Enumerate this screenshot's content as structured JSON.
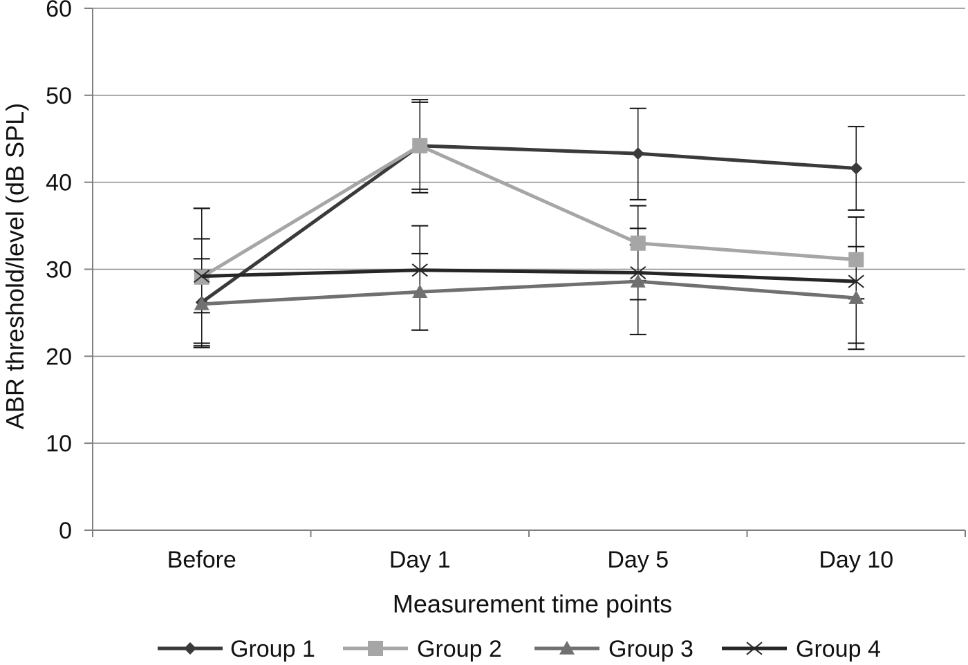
{
  "chart_data": {
    "type": "line",
    "title": "",
    "xlabel": "Measurement time points",
    "ylabel": "ABR threshold/level (dB SPL)",
    "categories": [
      "Before",
      "Day 1",
      "Day 5",
      "Day 10"
    ],
    "ylim": [
      0,
      60
    ],
    "yticks": [
      0,
      10,
      20,
      30,
      40,
      50,
      60
    ],
    "grid": true,
    "legend_position": "bottom",
    "series": [
      {
        "name": "Group 1",
        "marker": "diamond",
        "color": "#3a3a3a",
        "values": [
          26.2,
          44.2,
          43.3,
          41.6
        ],
        "error": [
          [
            21.5,
            37.0
          ],
          [
            39.2,
            49.2
          ],
          [
            38.0,
            48.5
          ],
          [
            36.8,
            46.4
          ]
        ]
      },
      {
        "name": "Group 2",
        "marker": "square",
        "color": "#a6a6a6",
        "values": [
          29.1,
          44.2,
          33.0,
          31.1
        ],
        "error": [
          [
            25.0,
            33.5
          ],
          [
            38.8,
            49.5
          ],
          [
            28.7,
            37.3
          ],
          [
            26.6,
            36.0
          ]
        ]
      },
      {
        "name": "Group 3",
        "marker": "triangle",
        "color": "#707070",
        "values": [
          26.0,
          27.4,
          28.6,
          26.7
        ],
        "error": [
          [
            21.0,
            31.2
          ],
          [
            23.0,
            31.8
          ],
          [
            22.5,
            34.7
          ],
          [
            20.8,
            32.6
          ]
        ]
      },
      {
        "name": "Group 4",
        "marker": "x",
        "color": "#262626",
        "values": [
          29.2,
          29.9,
          29.6,
          28.6
        ],
        "error": [
          [
            21.2,
            37.0
          ],
          [
            23.0,
            35.0
          ],
          [
            26.5,
            32.8
          ],
          [
            21.5,
            36.0
          ]
        ]
      }
    ]
  }
}
